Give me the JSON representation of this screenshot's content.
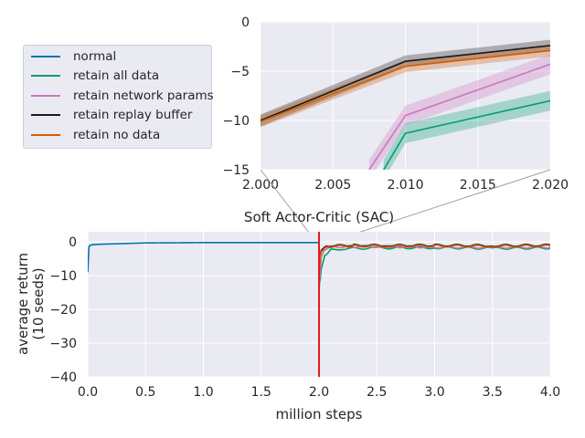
{
  "chart_data": [
    {
      "panel": "main",
      "type": "line",
      "title": "Soft Actor-Critic (SAC)",
      "xlabel": "million steps",
      "ylabel_lines": [
        "average return",
        "(10 seeds)"
      ],
      "xlim": [
        0.0,
        4.0
      ],
      "ylim": [
        -40,
        3
      ],
      "xticks": [
        "0.0",
        "0.5",
        "1.0",
        "1.5",
        "2.0",
        "2.5",
        "3.0",
        "3.5",
        "4.0"
      ],
      "yticks": [
        "0",
        "−10",
        "−20",
        "−30",
        "−40"
      ],
      "grid": true,
      "vline": {
        "x": 2.0,
        "color": "#e41a1c"
      },
      "series": [
        {
          "name": "normal",
          "color": "#0173b2",
          "x": [
            0.0,
            0.01,
            0.02,
            0.05,
            0.1,
            0.2,
            0.3,
            0.5,
            1.0,
            1.5,
            2.0
          ],
          "y": [
            -9,
            -1.5,
            -1.0,
            -0.8,
            -0.7,
            -0.6,
            -0.5,
            -0.3,
            -0.2,
            -0.2,
            -0.2
          ]
        },
        {
          "name": "retain all data",
          "color": "#029e73",
          "x": [
            2.0,
            2.005,
            2.01,
            2.02,
            2.05,
            2.1,
            2.2,
            2.5,
            3.0,
            3.5,
            4.0
          ],
          "y": [
            -15,
            -12,
            -11.3,
            -8,
            -4,
            -2.5,
            -2,
            -1.8,
            -1.7,
            -1.9,
            -1.8
          ]
        },
        {
          "name": "retain network params",
          "color": "#cc78bc",
          "x": [
            2.0,
            2.005,
            2.01,
            2.02,
            2.05,
            2.1,
            2.3,
            2.6,
            3.0,
            3.5,
            4.0
          ],
          "y": [
            -14,
            -11,
            -9.5,
            -4.5,
            -2.2,
            -1.5,
            -1.3,
            -1.4,
            -1.5,
            -1.6,
            -1.5
          ]
        },
        {
          "name": "retain replay buffer",
          "color": "#1a1a1a",
          "x": [
            2.0,
            2.01,
            2.02,
            2.05,
            2.1,
            2.3,
            2.6,
            3.0,
            3.5,
            4.0
          ],
          "y": [
            -10,
            -4,
            -2.5,
            -1.5,
            -1.2,
            -1.0,
            -1.1,
            -1.0,
            -1.1,
            -1.0
          ]
        },
        {
          "name": "retain no data",
          "color": "#d55e00",
          "x": [
            2.0,
            2.01,
            2.02,
            2.05,
            2.1,
            2.3,
            2.6,
            3.0,
            3.5,
            4.0
          ],
          "y": [
            -10,
            -4.5,
            -3,
            -1.8,
            -1.4,
            -1.2,
            -1.3,
            -1.2,
            -1.3,
            -1.2
          ]
        }
      ]
    },
    {
      "panel": "inset",
      "type": "line",
      "xlim": [
        2.0,
        2.02
      ],
      "ylim": [
        -15,
        0
      ],
      "xticks": [
        "2.000",
        "2.005",
        "2.010",
        "2.015",
        "2.020"
      ],
      "yticks": [
        "0",
        "−5",
        "−10",
        "−15"
      ],
      "grid": true,
      "series": [
        {
          "name": "retain replay buffer",
          "color": "#1a1a1a",
          "x": [
            2.0,
            2.01,
            2.02
          ],
          "y": [
            -10,
            -4.0,
            -2.4
          ],
          "band": 0.6
        },
        {
          "name": "retain no data",
          "color": "#d55e00",
          "x": [
            2.0,
            2.01,
            2.02
          ],
          "y": [
            -10.1,
            -4.5,
            -2.9
          ],
          "band": 0.6
        },
        {
          "name": "retain network params",
          "color": "#cc78bc",
          "x": [
            2.0075,
            2.01,
            2.02
          ],
          "y": [
            -15,
            -9.5,
            -4.3
          ],
          "band": 1.0
        },
        {
          "name": "retain all data",
          "color": "#029e73",
          "x": [
            2.0085,
            2.01,
            2.02
          ],
          "y": [
            -15,
            -11.3,
            -8.0
          ],
          "band": 1.0
        },
        {
          "name": "normal",
          "color": "#0173b2",
          "x": [
            2.0,
            2.0
          ],
          "y": [
            -15,
            -15
          ],
          "band": 0
        }
      ]
    }
  ],
  "legend": [
    {
      "label": "normal",
      "color": "#0173b2"
    },
    {
      "label": "retain all data",
      "color": "#029e73"
    },
    {
      "label": "retain network params",
      "color": "#cc78bc"
    },
    {
      "label": "retain replay buffer",
      "color": "#1a1a1a"
    },
    {
      "label": "retain no data",
      "color": "#d55e00"
    }
  ]
}
